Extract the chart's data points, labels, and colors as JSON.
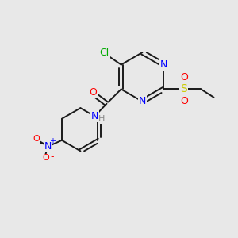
{
  "background_color": "#e8e8e8",
  "bond_color": "#1a1a1a",
  "atom_colors": {
    "N": "#0000ff",
    "O": "#ff0000",
    "S": "#cccc00",
    "Cl": "#00aa00",
    "H": "#888888",
    "C": "#1a1a1a"
  },
  "figsize": [
    3.0,
    3.0
  ],
  "dpi": 100
}
